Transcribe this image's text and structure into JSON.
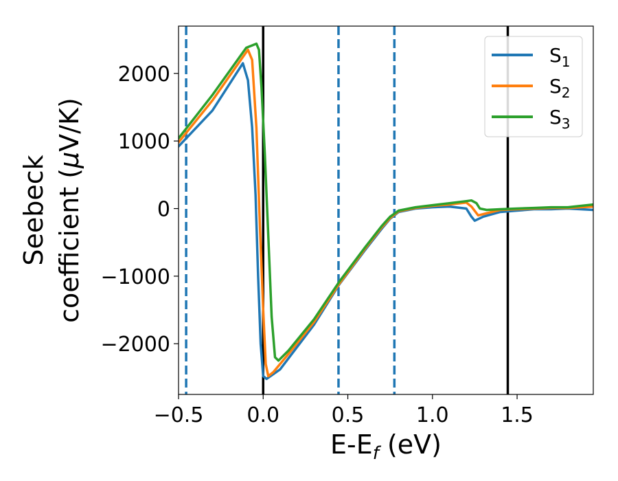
{
  "chart_data": {
    "type": "line",
    "xlabel": "E-E$_f$ (eV)",
    "xlabel_main": "E-E",
    "xlabel_sub": "f",
    "xlabel_tail": " (eV)",
    "ylabel_line1": "Seebeck",
    "ylabel_line2_pre": "coefficient  (",
    "ylabel_mu": "μ",
    "ylabel_line2_post": "V/K)",
    "xlim": [
      -0.5,
      1.95
    ],
    "ylim": [
      -2750,
      2700
    ],
    "x_ticks": [
      -0.5,
      0.0,
      0.5,
      1.0,
      1.5
    ],
    "x_tick_labels": [
      "−0.5",
      "0.0",
      "0.5",
      "1.0",
      "1.5"
    ],
    "y_ticks": [
      -2000,
      -1000,
      0,
      1000,
      2000
    ],
    "y_tick_labels": [
      "−2000",
      "−1000",
      "0",
      "1000",
      "2000"
    ],
    "grid": false,
    "legend_position": "top-right",
    "vertical_lines": [
      {
        "x": -0.455,
        "style": "dashed",
        "color": "#1f77b4"
      },
      {
        "x": 0.0,
        "style": "solid",
        "color": "#000000"
      },
      {
        "x": 0.445,
        "style": "dashed",
        "color": "#1f77b4"
      },
      {
        "x": 0.775,
        "style": "dashed",
        "color": "#1f77b4"
      },
      {
        "x": 1.445,
        "style": "solid",
        "color": "#000000"
      }
    ],
    "series": [
      {
        "name": "S",
        "subscript": "1",
        "color": "#1f77b4",
        "points": [
          [
            -0.5,
            920
          ],
          [
            -0.3,
            1450
          ],
          [
            -0.12,
            2150
          ],
          [
            -0.09,
            1900
          ],
          [
            -0.065,
            1200
          ],
          [
            -0.045,
            200
          ],
          [
            -0.03,
            -1000
          ],
          [
            -0.015,
            -2000
          ],
          [
            0.0,
            -2480
          ],
          [
            0.02,
            -2520
          ],
          [
            0.1,
            -2380
          ],
          [
            0.3,
            -1720
          ],
          [
            0.45,
            -1120
          ],
          [
            0.6,
            -620
          ],
          [
            0.7,
            -300
          ],
          [
            0.75,
            -150
          ],
          [
            0.8,
            -50
          ],
          [
            0.9,
            0
          ],
          [
            1.0,
            20
          ],
          [
            1.1,
            30
          ],
          [
            1.2,
            0
          ],
          [
            1.23,
            -120
          ],
          [
            1.25,
            -180
          ],
          [
            1.3,
            -120
          ],
          [
            1.4,
            -50
          ],
          [
            1.5,
            -30
          ],
          [
            1.6,
            -10
          ],
          [
            1.7,
            -10
          ],
          [
            1.8,
            0
          ],
          [
            1.95,
            -20
          ]
        ]
      },
      {
        "name": "S",
        "subscript": "2",
        "color": "#ff7f0e",
        "points": [
          [
            -0.5,
            980
          ],
          [
            -0.3,
            1600
          ],
          [
            -0.09,
            2350
          ],
          [
            -0.065,
            2200
          ],
          [
            -0.04,
            1200
          ],
          [
            -0.02,
            -200
          ],
          [
            0.0,
            -1500
          ],
          [
            0.015,
            -2300
          ],
          [
            0.03,
            -2480
          ],
          [
            0.06,
            -2420
          ],
          [
            0.15,
            -2150
          ],
          [
            0.3,
            -1680
          ],
          [
            0.45,
            -1110
          ],
          [
            0.6,
            -600
          ],
          [
            0.7,
            -280
          ],
          [
            0.75,
            -140
          ],
          [
            0.8,
            -40
          ],
          [
            0.9,
            10
          ],
          [
            1.0,
            40
          ],
          [
            1.1,
            60
          ],
          [
            1.2,
            90
          ],
          [
            1.23,
            30
          ],
          [
            1.27,
            -100
          ],
          [
            1.35,
            -50
          ],
          [
            1.4,
            -20
          ],
          [
            1.5,
            -10
          ],
          [
            1.6,
            0
          ],
          [
            1.7,
            10
          ],
          [
            1.8,
            10
          ],
          [
            1.95,
            30
          ]
        ]
      },
      {
        "name": "S",
        "subscript": "3",
        "color": "#2ca02c",
        "points": [
          [
            -0.5,
            1040
          ],
          [
            -0.3,
            1680
          ],
          [
            -0.1,
            2380
          ],
          [
            -0.04,
            2440
          ],
          [
            -0.025,
            2350
          ],
          [
            -0.01,
            1800
          ],
          [
            0.01,
            800
          ],
          [
            0.03,
            -400
          ],
          [
            0.05,
            -1600
          ],
          [
            0.07,
            -2200
          ],
          [
            0.09,
            -2250
          ],
          [
            0.15,
            -2100
          ],
          [
            0.3,
            -1640
          ],
          [
            0.45,
            -1080
          ],
          [
            0.6,
            -580
          ],
          [
            0.7,
            -260
          ],
          [
            0.75,
            -120
          ],
          [
            0.8,
            -30
          ],
          [
            0.9,
            20
          ],
          [
            1.0,
            50
          ],
          [
            1.1,
            80
          ],
          [
            1.2,
            110
          ],
          [
            1.23,
            120
          ],
          [
            1.26,
            80
          ],
          [
            1.28,
            0
          ],
          [
            1.32,
            -20
          ],
          [
            1.4,
            -10
          ],
          [
            1.5,
            0
          ],
          [
            1.6,
            10
          ],
          [
            1.7,
            20
          ],
          [
            1.8,
            20
          ],
          [
            1.95,
            60
          ]
        ]
      }
    ]
  }
}
